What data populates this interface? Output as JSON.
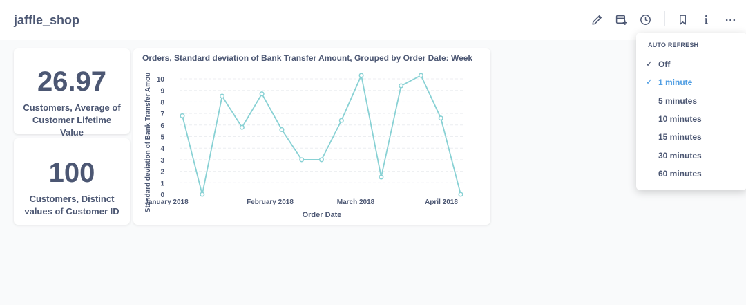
{
  "header": {
    "title": "jaffle_shop",
    "icons": [
      "pencil-icon",
      "add-question-icon",
      "clock-icon",
      "bookmark-icon",
      "info-icon",
      "more-icon"
    ]
  },
  "cards": [
    {
      "value": "26.97",
      "label": "Customers, Average of Customer Lifetime Value"
    },
    {
      "value": "100",
      "label": "Customers, Distinct values of Customer ID"
    }
  ],
  "chart_data": {
    "type": "line",
    "title": "Orders, Standard deviation of Bank Transfer Amount, Grouped by Order Date: Week",
    "xlabel": "Order Date",
    "ylabel": "Standard deviation of Bank Transfer Amou",
    "ylim": [
      0,
      10
    ],
    "yticks": [
      "0",
      "1",
      "2",
      "3",
      "4",
      "5",
      "6",
      "7",
      "8",
      "9",
      "10"
    ],
    "xtick_labels": [
      "January 2018",
      "February 2018",
      "March 2018",
      "April 2018"
    ],
    "grid": true,
    "color": "#88d1d4",
    "series": [
      {
        "values": [
          6.8,
          0.0,
          8.5,
          5.8,
          8.7,
          5.6,
          3.0,
          3.0,
          6.4,
          10.3,
          1.5,
          9.4,
          10.3,
          6.6,
          0.0
        ]
      }
    ]
  },
  "auto_refresh": {
    "title": "AUTO REFRESH",
    "options": [
      {
        "label": "Off",
        "checked": true,
        "selected": false
      },
      {
        "label": "1 minute",
        "checked": true,
        "selected": true
      },
      {
        "label": "5 minutes",
        "checked": false,
        "selected": false
      },
      {
        "label": "10 minutes",
        "checked": false,
        "selected": false
      },
      {
        "label": "15 minutes",
        "checked": false,
        "selected": false
      },
      {
        "label": "30 minutes",
        "checked": false,
        "selected": false
      },
      {
        "label": "60 minutes",
        "checked": false,
        "selected": false
      }
    ]
  }
}
